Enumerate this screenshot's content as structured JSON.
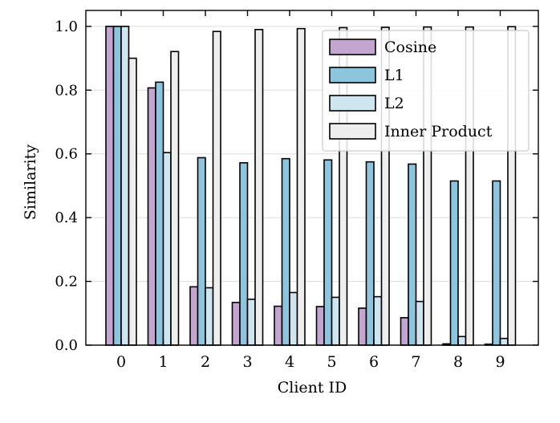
{
  "chart_data": {
    "type": "bar",
    "xlabel": "Client ID",
    "ylabel": "Similarity",
    "categories": [
      "0",
      "1",
      "2",
      "3",
      "4",
      "5",
      "6",
      "7",
      "8",
      "9"
    ],
    "ylim": [
      0,
      1.05
    ],
    "yticks": [
      "0.0",
      "0.2",
      "0.4",
      "0.6",
      "0.8",
      "1.0"
    ],
    "grid": "horizontal",
    "legend_position": "top-right",
    "series": [
      {
        "name": "Cosine",
        "color": "#c3a6cf",
        "values": [
          1.0,
          0.807,
          0.183,
          0.134,
          0.122,
          0.121,
          0.116,
          0.086,
          0.004,
          0.003
        ]
      },
      {
        "name": "L1",
        "color": "#8ec5de",
        "values": [
          1.0,
          0.825,
          0.588,
          0.572,
          0.585,
          0.581,
          0.575,
          0.568,
          0.515,
          0.515
        ]
      },
      {
        "name": "L2",
        "color": "#cfe6f0",
        "values": [
          1.0,
          0.604,
          0.18,
          0.144,
          0.165,
          0.15,
          0.152,
          0.137,
          0.027,
          0.021
        ]
      },
      {
        "name": "Inner Product",
        "color": "#eeeeee",
        "values": [
          0.9,
          0.921,
          0.984,
          0.99,
          0.993,
          0.996,
          0.997,
          0.998,
          0.998,
          0.999
        ]
      }
    ]
  }
}
